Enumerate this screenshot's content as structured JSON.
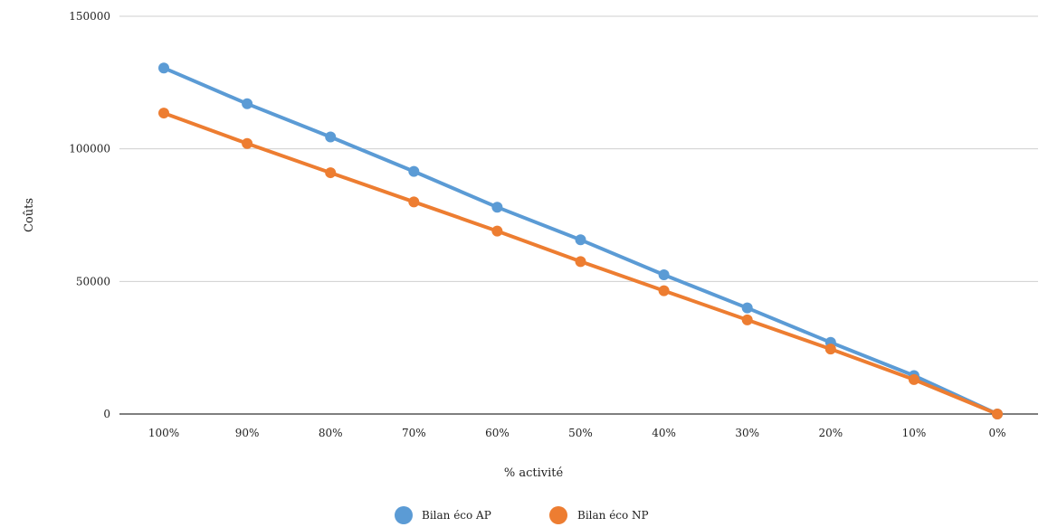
{
  "chart_data": {
    "type": "line",
    "title": "",
    "xlabel": "% activité",
    "ylabel": "Coûts",
    "categories": [
      "100%",
      "90%",
      "80%",
      "70%",
      "60%",
      "50%",
      "40%",
      "30%",
      "20%",
      "10%",
      "0%"
    ],
    "yticks": [
      "0",
      "50000",
      "100000",
      "150000"
    ],
    "ylim": [
      0,
      150000
    ],
    "grid": true,
    "legend_position": "bottom",
    "series": [
      {
        "name": "Bilan éco AP",
        "color": "#5b9bd5",
        "values": [
          130500,
          117000,
          104500,
          91500,
          78000,
          65700,
          52500,
          40000,
          27000,
          14500,
          0
        ]
      },
      {
        "name": "Bilan éco NP",
        "color": "#ed7d31",
        "values": [
          113500,
          102000,
          91000,
          80000,
          69000,
          57500,
          46500,
          35500,
          24500,
          13000,
          0
        ]
      }
    ]
  }
}
